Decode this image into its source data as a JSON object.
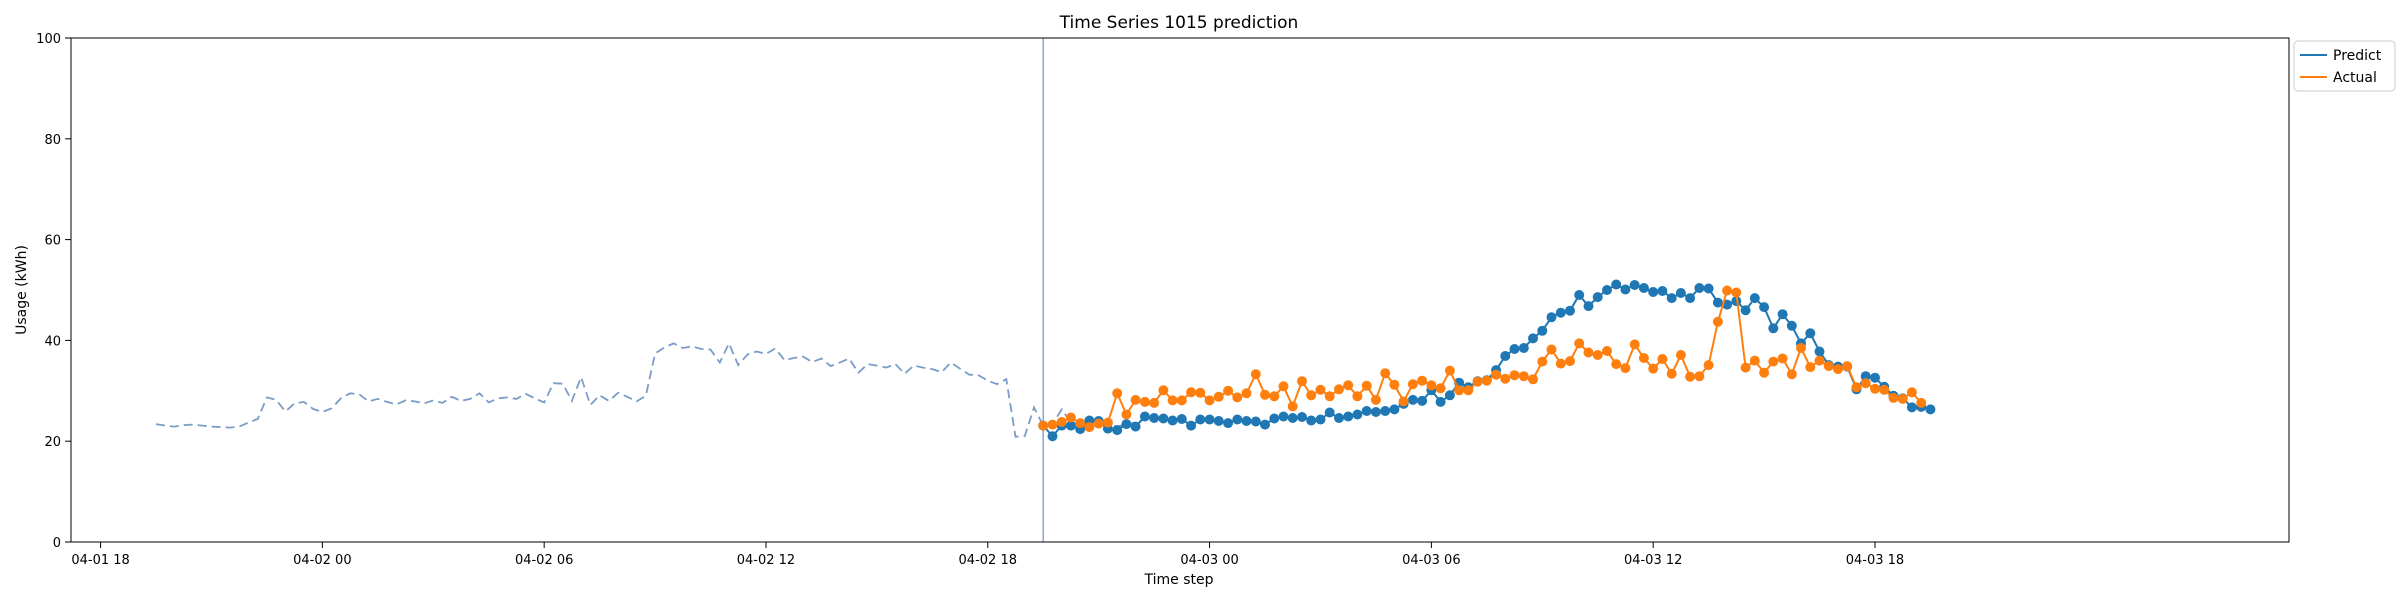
{
  "chart_data": {
    "type": "line",
    "title": "Time Series 1015 prediction",
    "xlabel": "Time step",
    "ylabel": "Usage (kWh)",
    "x_axis": "datetime",
    "xlim": [
      "04-01 17:12",
      "04-04 05:12"
    ],
    "ylim": [
      0,
      100
    ],
    "yticks": [
      0,
      20,
      40,
      60,
      80,
      100
    ],
    "xticks": [
      {
        "t": "04-01 18:00",
        "label": "04-01 18"
      },
      {
        "t": "04-02 00:00",
        "label": "04-02 00"
      },
      {
        "t": "04-02 06:00",
        "label": "04-02 06"
      },
      {
        "t": "04-02 12:00",
        "label": "04-02 12"
      },
      {
        "t": "04-02 18:00",
        "label": "04-02 18"
      },
      {
        "t": "04-03 00:00",
        "label": "04-03 00"
      },
      {
        "t": "04-03 06:00",
        "label": "04-03 06"
      },
      {
        "t": "04-03 12:00",
        "label": "04-03 12"
      },
      {
        "t": "04-03 18:00",
        "label": "04-03 18"
      }
    ],
    "grid": false,
    "legend_position": "upper right, outside plot",
    "forecast_start_marker": "04-02 19:30",
    "history": {
      "style": "dashed",
      "color": "#7a9cc6",
      "start": "04-01 19:30",
      "interval_minutes": 15,
      "values": [
        23.4,
        23.1,
        22.9,
        23.2,
        23.3,
        23.1,
        22.9,
        22.8,
        22.7,
        22.9,
        23.7,
        24.4,
        28.7,
        28.2,
        25.9,
        27.5,
        27.8,
        26.4,
        25.8,
        26.5,
        28.5,
        29.5,
        29.3,
        27.9,
        28.4,
        27.8,
        27.3,
        28.1,
        27.9,
        27.5,
        28.1,
        27.6,
        28.8,
        28.0,
        28.4,
        29.5,
        27.7,
        28.5,
        28.7,
        28.4,
        29.4,
        28.5,
        27.7,
        31.5,
        31.4,
        28.0,
        32.7,
        27.2,
        29.1,
        28.0,
        29.6,
        28.8,
        27.9,
        29.0,
        37.4,
        38.6,
        39.4,
        38.5,
        38.8,
        38.3,
        38.2,
        35.6,
        39.4,
        35.1,
        37.2,
        37.8,
        37.3,
        38.4,
        36.1,
        36.5,
        36.8,
        35.7,
        36.4,
        34.9,
        35.6,
        36.4,
        33.6,
        35.3,
        35.0,
        34.6,
        35.3,
        33.4,
        35.0,
        34.6,
        34.3,
        33.7,
        35.6,
        34.4,
        33.2,
        33.1,
        32.0,
        31.3,
        32.3,
        20.9,
        21.0,
        26.7,
        23.1,
        23.4,
        26.3,
        23.7,
        23.4,
        24.3,
        23.8,
        23.4,
        22.9,
        23.4,
        23.7
      ]
    },
    "series": [
      {
        "name": "Predict",
        "color": "#1f77b4",
        "start": "04-02 19:30",
        "interval_minutes": 15,
        "values": [
          23.1,
          21.0,
          23.1,
          23.1,
          22.4,
          24.1,
          24.0,
          22.5,
          22.2,
          23.4,
          22.9,
          24.9,
          24.6,
          24.5,
          24.1,
          24.4,
          23.1,
          24.3,
          24.3,
          24.0,
          23.6,
          24.3,
          24.0,
          23.9,
          23.3,
          24.5,
          24.9,
          24.6,
          24.8,
          24.1,
          24.3,
          25.7,
          24.6,
          24.9,
          25.3,
          26.0,
          25.8,
          26.0,
          26.3,
          27.4,
          28.2,
          28.0,
          30.1,
          27.8,
          29.1,
          31.6,
          30.7,
          31.9,
          32.1,
          34.1,
          36.9,
          38.3,
          38.5,
          40.4,
          41.9,
          44.6,
          45.5,
          45.9,
          49.0,
          46.8,
          48.6,
          50.0,
          51.1,
          50.1,
          51.0,
          50.4,
          49.6,
          49.8,
          48.4,
          49.4,
          48.4,
          50.4,
          50.3,
          47.5,
          47.1,
          47.8,
          46.0,
          48.4,
          46.6,
          42.4,
          45.2,
          42.9,
          39.4,
          41.4,
          37.8,
          35.1,
          34.8,
          34.8,
          30.3,
          32.9,
          32.6,
          30.8,
          29.0,
          28.5,
          26.7,
          26.8,
          26.3
        ]
      },
      {
        "name": "Actual",
        "color": "#ff7f0e",
        "start": "04-02 19:30",
        "interval_minutes": 15,
        "values": [
          23.1,
          23.3,
          23.8,
          24.7,
          23.6,
          22.8,
          23.5,
          23.7,
          29.5,
          25.3,
          28.2,
          27.8,
          27.6,
          30.1,
          28.1,
          28.1,
          29.7,
          29.6,
          28.1,
          28.8,
          30.0,
          28.7,
          29.5,
          33.3,
          29.2,
          28.9,
          30.9,
          26.9,
          31.9,
          29.1,
          30.2,
          28.9,
          30.3,
          31.1,
          28.9,
          31.0,
          28.2,
          33.5,
          31.2,
          27.9,
          31.3,
          32.0,
          31.1,
          30.5,
          34.0,
          30.1,
          30.1,
          31.8,
          32.0,
          33.2,
          32.4,
          33.1,
          32.9,
          32.3,
          35.8,
          38.2,
          35.4,
          35.9,
          39.4,
          37.6,
          37.1,
          37.9,
          35.3,
          34.5,
          39.2,
          36.5,
          34.4,
          36.3,
          33.4,
          37.1,
          32.8,
          32.9,
          35.1,
          43.7,
          49.9,
          49.5,
          34.6,
          36.0,
          33.6,
          35.8,
          36.4,
          33.3,
          38.5,
          34.7,
          36.0,
          34.9,
          34.3,
          34.9,
          30.7,
          31.5,
          30.4,
          30.2,
          28.6,
          28.4,
          29.7,
          27.6
        ]
      }
    ],
    "legend": [
      "Predict",
      "Actual"
    ]
  }
}
